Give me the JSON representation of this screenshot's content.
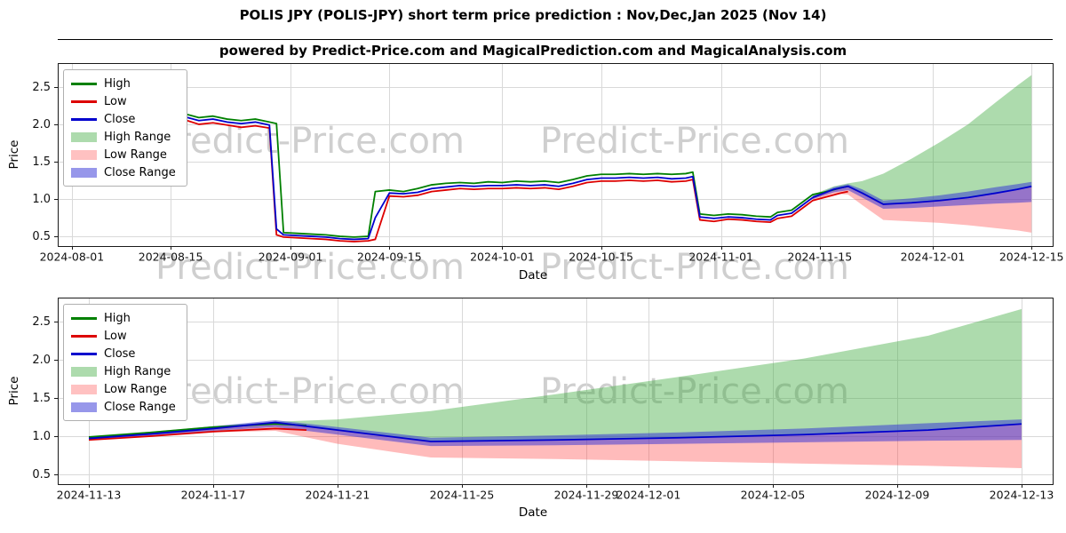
{
  "page": {
    "title": "POLIS JPY (POLIS-JPY) short term price prediction : Nov,Dec,Jan 2025 (Nov 14)",
    "subtitle": "powered by Predict-Price.com and MagicalPrediction.com and MagicalAnalysis.com",
    "watermark": "Predict-Price.com"
  },
  "legend": {
    "items": [
      {
        "label": "High",
        "kind": "line",
        "color": "#008000"
      },
      {
        "label": "Low",
        "kind": "line",
        "color": "#dd0000"
      },
      {
        "label": "Close",
        "kind": "line",
        "color": "#0000cd"
      },
      {
        "label": "High Range",
        "kind": "band",
        "color": "#addbad"
      },
      {
        "label": "Low Range",
        "kind": "band",
        "color": "#ffc1c1"
      },
      {
        "label": "Close Range",
        "kind": "band",
        "color": "#9797ea"
      }
    ]
  },
  "chart_data": [
    {
      "type": "line",
      "title": "",
      "xlabel": "Date",
      "ylabel": "Price",
      "xlim": [
        "2024-07-30",
        "2024-12-18"
      ],
      "ylim": [
        0.37,
        2.82
      ],
      "yticks": [
        0.5,
        1.0,
        1.5,
        2.0,
        2.5
      ],
      "xticks": [
        "2024-08-01",
        "2024-08-15",
        "2024-09-01",
        "2024-09-15",
        "2024-10-01",
        "2024-10-15",
        "2024-11-01",
        "2024-11-15",
        "2024-12-01",
        "2024-12-15"
      ],
      "grid": true,
      "legend_position": "upper left",
      "series": [
        {
          "name": "High",
          "color": "#008000",
          "x": [
            "2024-08-01",
            "2024-08-03",
            "2024-08-05",
            "2024-08-07",
            "2024-08-09",
            "2024-08-11",
            "2024-08-13",
            "2024-08-15",
            "2024-08-17",
            "2024-08-19",
            "2024-08-21",
            "2024-08-23",
            "2024-08-25",
            "2024-08-27",
            "2024-08-29",
            "2024-08-30",
            "2024-08-31",
            "2024-09-02",
            "2024-09-04",
            "2024-09-06",
            "2024-09-08",
            "2024-09-10",
            "2024-09-12",
            "2024-09-13",
            "2024-09-15",
            "2024-09-17",
            "2024-09-19",
            "2024-09-21",
            "2024-09-23",
            "2024-09-25",
            "2024-09-27",
            "2024-09-29",
            "2024-10-01",
            "2024-10-03",
            "2024-10-05",
            "2024-10-07",
            "2024-10-09",
            "2024-10-11",
            "2024-10-13",
            "2024-10-15",
            "2024-10-17",
            "2024-10-19",
            "2024-10-21",
            "2024-10-23",
            "2024-10-25",
            "2024-10-27",
            "2024-10-28",
            "2024-10-29",
            "2024-10-31",
            "2024-11-02",
            "2024-11-04",
            "2024-11-06",
            "2024-11-08",
            "2024-11-09",
            "2024-11-11",
            "2024-11-12",
            "2024-11-13",
            "2024-11-14",
            "2024-11-16",
            "2024-11-18",
            "2024-11-19"
          ],
          "y": [
            2.02,
            2.05,
            2.02,
            2.06,
            2.1,
            2.14,
            2.12,
            2.15,
            2.14,
            2.09,
            2.11,
            2.07,
            2.05,
            2.07,
            2.03,
            2.01,
            0.55,
            0.54,
            0.53,
            0.52,
            0.5,
            0.49,
            0.5,
            1.1,
            1.12,
            1.1,
            1.14,
            1.19,
            1.21,
            1.22,
            1.21,
            1.23,
            1.22,
            1.24,
            1.23,
            1.24,
            1.22,
            1.26,
            1.31,
            1.33,
            1.33,
            1.34,
            1.33,
            1.34,
            1.33,
            1.34,
            1.36,
            0.8,
            0.78,
            0.8,
            0.79,
            0.77,
            0.76,
            0.82,
            0.85,
            0.92,
            0.99,
            1.06,
            1.1,
            1.15,
            1.17
          ]
        },
        {
          "name": "Low",
          "color": "#dd0000",
          "x": [
            "2024-08-01",
            "2024-08-03",
            "2024-08-05",
            "2024-08-07",
            "2024-08-09",
            "2024-08-11",
            "2024-08-13",
            "2024-08-15",
            "2024-08-17",
            "2024-08-19",
            "2024-08-21",
            "2024-08-23",
            "2024-08-25",
            "2024-08-27",
            "2024-08-29",
            "2024-08-30",
            "2024-08-31",
            "2024-09-02",
            "2024-09-04",
            "2024-09-06",
            "2024-09-08",
            "2024-09-10",
            "2024-09-12",
            "2024-09-13",
            "2024-09-15",
            "2024-09-17",
            "2024-09-19",
            "2024-09-21",
            "2024-09-23",
            "2024-09-25",
            "2024-09-27",
            "2024-09-29",
            "2024-10-01",
            "2024-10-03",
            "2024-10-05",
            "2024-10-07",
            "2024-10-09",
            "2024-10-11",
            "2024-10-13",
            "2024-10-15",
            "2024-10-17",
            "2024-10-19",
            "2024-10-21",
            "2024-10-23",
            "2024-10-25",
            "2024-10-27",
            "2024-10-28",
            "2024-10-29",
            "2024-10-31",
            "2024-11-02",
            "2024-11-04",
            "2024-11-06",
            "2024-11-08",
            "2024-11-09",
            "2024-11-11",
            "2024-11-12",
            "2024-11-13",
            "2024-11-14",
            "2024-11-16",
            "2024-11-18",
            "2024-11-19"
          ],
          "y": [
            1.94,
            1.97,
            1.94,
            1.97,
            2.01,
            2.05,
            2.03,
            2.07,
            2.06,
            2.0,
            2.02,
            1.99,
            1.96,
            1.98,
            1.95,
            0.52,
            0.49,
            0.48,
            0.47,
            0.46,
            0.44,
            0.43,
            0.44,
            0.46,
            1.04,
            1.03,
            1.05,
            1.1,
            1.12,
            1.14,
            1.13,
            1.14,
            1.14,
            1.15,
            1.14,
            1.15,
            1.13,
            1.17,
            1.22,
            1.24,
            1.24,
            1.25,
            1.24,
            1.25,
            1.23,
            1.24,
            1.26,
            0.72,
            0.7,
            0.73,
            0.72,
            0.7,
            0.69,
            0.74,
            0.77,
            0.84,
            0.91,
            0.98,
            1.03,
            1.08,
            1.1
          ]
        },
        {
          "name": "Close",
          "color": "#0000cd",
          "x": [
            "2024-08-01",
            "2024-08-03",
            "2024-08-05",
            "2024-08-07",
            "2024-08-09",
            "2024-08-11",
            "2024-08-13",
            "2024-08-15",
            "2024-08-17",
            "2024-08-19",
            "2024-08-21",
            "2024-08-23",
            "2024-08-25",
            "2024-08-27",
            "2024-08-29",
            "2024-08-30",
            "2024-08-31",
            "2024-09-02",
            "2024-09-04",
            "2024-09-06",
            "2024-09-08",
            "2024-09-10",
            "2024-09-12",
            "2024-09-13",
            "2024-09-15",
            "2024-09-17",
            "2024-09-19",
            "2024-09-21",
            "2024-09-23",
            "2024-09-25",
            "2024-09-27",
            "2024-09-29",
            "2024-10-01",
            "2024-10-03",
            "2024-10-05",
            "2024-10-07",
            "2024-10-09",
            "2024-10-11",
            "2024-10-13",
            "2024-10-15",
            "2024-10-17",
            "2024-10-19",
            "2024-10-21",
            "2024-10-23",
            "2024-10-25",
            "2024-10-27",
            "2024-10-28",
            "2024-10-29",
            "2024-10-31",
            "2024-11-02",
            "2024-11-04",
            "2024-11-06",
            "2024-11-08",
            "2024-11-09",
            "2024-11-11",
            "2024-11-12",
            "2024-11-13",
            "2024-11-14",
            "2024-11-17",
            "2024-11-19",
            "2024-11-21",
            "2024-11-24",
            "2024-11-28",
            "2024-12-02",
            "2024-12-06",
            "2024-12-10",
            "2024-12-13",
            "2024-12-15"
          ],
          "y": [
            1.98,
            2.01,
            1.98,
            2.02,
            2.06,
            2.1,
            2.08,
            2.11,
            2.1,
            2.05,
            2.07,
            2.03,
            2.01,
            2.03,
            1.99,
            0.6,
            0.52,
            0.51,
            0.5,
            0.49,
            0.47,
            0.46,
            0.47,
            0.75,
            1.08,
            1.07,
            1.09,
            1.14,
            1.16,
            1.18,
            1.17,
            1.18,
            1.18,
            1.19,
            1.18,
            1.19,
            1.17,
            1.21,
            1.26,
            1.28,
            1.28,
            1.29,
            1.28,
            1.29,
            1.27,
            1.28,
            1.3,
            0.76,
            0.74,
            0.76,
            0.75,
            0.73,
            0.72,
            0.78,
            0.81,
            0.88,
            0.95,
            1.02,
            1.13,
            1.17,
            1.08,
            0.93,
            0.95,
            0.98,
            1.02,
            1.08,
            1.13,
            1.17
          ]
        }
      ],
      "bands": [
        {
          "name": "High Range",
          "color": "rgba(60,170,60,0.42)",
          "x": [
            "2024-11-14",
            "2024-11-17",
            "2024-11-19",
            "2024-11-21",
            "2024-11-24",
            "2024-11-28",
            "2024-12-02",
            "2024-12-06",
            "2024-12-10",
            "2024-12-13",
            "2024-12-15"
          ],
          "upper": [
            1.06,
            1.17,
            1.21,
            1.24,
            1.34,
            1.54,
            1.76,
            2.0,
            2.3,
            2.52,
            2.66
          ],
          "lower": [
            1.02,
            1.13,
            1.17,
            1.08,
            0.93,
            0.95,
            0.98,
            1.02,
            1.08,
            1.13,
            1.17
          ]
        },
        {
          "name": "Low Range",
          "color": "rgba(255,60,60,0.35)",
          "x": [
            "2024-11-14",
            "2024-11-17",
            "2024-11-19",
            "2024-11-21",
            "2024-11-24",
            "2024-11-28",
            "2024-12-02",
            "2024-12-06",
            "2024-12-10",
            "2024-12-13",
            "2024-12-15"
          ],
          "upper": [
            1.02,
            1.13,
            1.17,
            1.08,
            0.93,
            0.95,
            0.98,
            1.02,
            1.08,
            1.13,
            1.17
          ],
          "lower": [
            0.98,
            1.07,
            1.06,
            0.92,
            0.72,
            0.7,
            0.68,
            0.65,
            0.61,
            0.58,
            0.55
          ]
        },
        {
          "name": "Close Range",
          "color": "rgba(45,45,215,0.5)",
          "x": [
            "2024-11-14",
            "2024-11-17",
            "2024-11-19",
            "2024-11-21",
            "2024-11-24",
            "2024-11-28",
            "2024-12-02",
            "2024-12-06",
            "2024-12-10",
            "2024-12-13",
            "2024-12-15"
          ],
          "upper": [
            1.04,
            1.16,
            1.2,
            1.13,
            0.98,
            1.01,
            1.05,
            1.1,
            1.16,
            1.2,
            1.23
          ],
          "lower": [
            1.0,
            1.09,
            1.12,
            1.02,
            0.87,
            0.88,
            0.9,
            0.92,
            0.94,
            0.95,
            0.96
          ]
        }
      ]
    },
    {
      "type": "line",
      "title": "",
      "xlabel": "Date",
      "ylabel": "Price",
      "xlim": [
        "2024-11-12",
        "2024-12-14"
      ],
      "ylim": [
        0.37,
        2.82
      ],
      "yticks": [
        0.5,
        1.0,
        1.5,
        2.0,
        2.5
      ],
      "xticks": [
        "2024-11-13",
        "2024-11-17",
        "2024-11-21",
        "2024-11-25",
        "2024-11-29",
        "2024-12-01",
        "2024-12-05",
        "2024-12-09",
        "2024-12-13"
      ],
      "grid": true,
      "legend_position": "upper left",
      "series": [
        {
          "name": "High",
          "color": "#008000",
          "x": [
            "2024-11-13",
            "2024-11-15",
            "2024-11-17",
            "2024-11-19",
            "2024-11-20"
          ],
          "y": [
            0.99,
            1.05,
            1.12,
            1.16,
            1.14
          ]
        },
        {
          "name": "Low",
          "color": "#dd0000",
          "x": [
            "2024-11-13",
            "2024-11-15",
            "2024-11-17",
            "2024-11-19",
            "2024-11-20"
          ],
          "y": [
            0.95,
            1.0,
            1.06,
            1.1,
            1.08
          ]
        },
        {
          "name": "Close",
          "color": "#0000cd",
          "x": [
            "2024-11-13",
            "2024-11-15",
            "2024-11-17",
            "2024-11-19",
            "2024-11-21",
            "2024-11-24",
            "2024-11-28",
            "2024-12-02",
            "2024-12-06",
            "2024-12-10",
            "2024-12-13"
          ],
          "y": [
            0.97,
            1.03,
            1.1,
            1.18,
            1.08,
            0.93,
            0.95,
            0.98,
            1.02,
            1.08,
            1.16
          ]
        }
      ],
      "bands": [
        {
          "name": "High Range",
          "color": "rgba(60,170,60,0.42)",
          "x": [
            "2024-11-13",
            "2024-11-15",
            "2024-11-17",
            "2024-11-19",
            "2024-11-21",
            "2024-11-24",
            "2024-11-28",
            "2024-12-02",
            "2024-12-06",
            "2024-12-10",
            "2024-12-13"
          ],
          "upper": [
            0.99,
            1.06,
            1.13,
            1.19,
            1.22,
            1.33,
            1.55,
            1.78,
            2.02,
            2.32,
            2.67
          ],
          "lower": [
            0.97,
            1.03,
            1.1,
            1.18,
            1.08,
            0.93,
            0.95,
            0.98,
            1.02,
            1.08,
            1.16
          ]
        },
        {
          "name": "Low Range",
          "color": "rgba(255,60,60,0.35)",
          "x": [
            "2024-11-13",
            "2024-11-15",
            "2024-11-17",
            "2024-11-19",
            "2024-11-21",
            "2024-11-24",
            "2024-11-28",
            "2024-12-02",
            "2024-12-06",
            "2024-12-10",
            "2024-12-13"
          ],
          "upper": [
            0.97,
            1.03,
            1.1,
            1.18,
            1.08,
            0.93,
            0.95,
            0.98,
            1.02,
            1.08,
            1.16
          ],
          "lower": [
            0.95,
            1.0,
            1.05,
            1.07,
            0.9,
            0.72,
            0.7,
            0.67,
            0.64,
            0.61,
            0.58
          ]
        },
        {
          "name": "Close Range",
          "color": "rgba(45,45,215,0.5)",
          "x": [
            "2024-11-13",
            "2024-11-15",
            "2024-11-17",
            "2024-11-19",
            "2024-11-21",
            "2024-11-24",
            "2024-11-28",
            "2024-12-02",
            "2024-12-06",
            "2024-12-10",
            "2024-12-13"
          ],
          "upper": [
            0.99,
            1.05,
            1.13,
            1.21,
            1.12,
            0.98,
            1.01,
            1.05,
            1.1,
            1.17,
            1.22
          ],
          "lower": [
            0.95,
            1.0,
            1.07,
            1.12,
            1.02,
            0.87,
            0.88,
            0.9,
            0.92,
            0.94,
            0.95
          ]
        }
      ]
    }
  ]
}
